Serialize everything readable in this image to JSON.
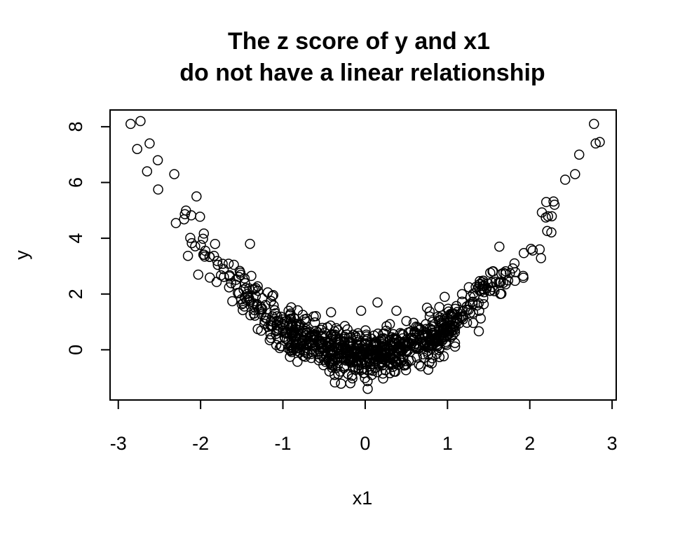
{
  "chart_data": {
    "type": "scatter",
    "title": [
      "The z score of y and x1",
      "do not have a linear relationship"
    ],
    "xlabel": "x1",
    "ylabel": "y",
    "xlim": [
      -3.1,
      3.05
    ],
    "ylim": [
      -1.8,
      8.6
    ],
    "xticks": [
      -3,
      -2,
      -1,
      0,
      1,
      2,
      3
    ],
    "yticks": [
      0,
      2,
      4,
      6,
      8
    ],
    "grid": false,
    "marker": "open-circle",
    "notable_points": [
      {
        "x": -2.85,
        "y": 8.1
      },
      {
        "x": -2.73,
        "y": 8.2
      },
      {
        "x": -2.77,
        "y": 7.2
      },
      {
        "x": -2.62,
        "y": 7.4
      },
      {
        "x": -2.52,
        "y": 6.8
      },
      {
        "x": -2.65,
        "y": 6.4
      },
      {
        "x": -2.32,
        "y": 6.3
      },
      {
        "x": -2.05,
        "y": 5.5
      },
      {
        "x": -1.4,
        "y": 3.8
      },
      {
        "x": 0.15,
        "y": 1.7
      },
      {
        "x": -0.05,
        "y": 1.4
      },
      {
        "x": 0.38,
        "y": 1.4
      },
      {
        "x": 0.03,
        "y": -1.4
      },
      {
        "x": -0.18,
        "y": -1.2
      },
      {
        "x": 1.63,
        "y": 3.7
      },
      {
        "x": 1.92,
        "y": 2.65
      },
      {
        "x": 2.12,
        "y": 3.6
      },
      {
        "x": 2.3,
        "y": 5.2
      },
      {
        "x": 2.2,
        "y": 5.3
      },
      {
        "x": 2.55,
        "y": 6.3
      },
      {
        "x": 2.6,
        "y": 7.0
      },
      {
        "x": 2.43,
        "y": 6.1
      },
      {
        "x": 2.78,
        "y": 8.1
      },
      {
        "x": 2.8,
        "y": 7.4
      },
      {
        "x": 2.85,
        "y": 7.45
      }
    ],
    "generated_cloud": {
      "description": "bulk points follow y ≈ x1^2 - 0.2 with noise",
      "count": 900,
      "x_mean": 0.0,
      "x_sd": 0.95,
      "noise_sd": 0.42,
      "curve": [
        1.0,
        0.0,
        -0.2
      ]
    }
  }
}
